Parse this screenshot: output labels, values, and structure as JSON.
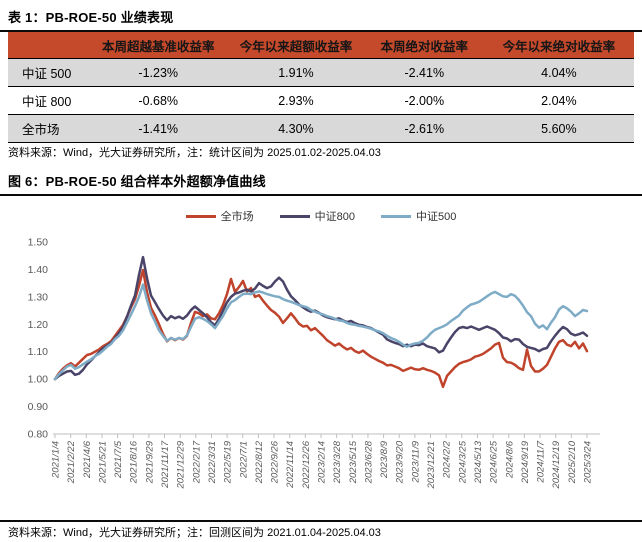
{
  "table_section": {
    "title": "表 1：PB-ROE-50 业绩表现",
    "columns": [
      "",
      "本周超越基准收益率",
      "今年以来超额收益率",
      "本周绝对收益率",
      "今年以来绝对收益率"
    ],
    "col_widths": [
      "13%",
      "22%",
      "22%",
      "19%",
      "24%"
    ],
    "rows": [
      {
        "label": "中证 500",
        "values": [
          "-1.23%",
          "1.91%",
          "-2.41%",
          "4.04%"
        ]
      },
      {
        "label": "中证 800",
        "values": [
          "-0.68%",
          "2.93%",
          "-2.00%",
          "2.04%"
        ]
      },
      {
        "label": "全市场",
        "values": [
          "-1.41%",
          "4.30%",
          "-2.61%",
          "5.60%"
        ]
      }
    ],
    "header_bg": "#C5492B",
    "stripe_bg": "#D9D9D9",
    "source": "资料来源：Wind，光大证券研究所，注：统计区间为 2025.01.02-2025.04.03"
  },
  "chart_section": {
    "title": "图 6：PB-ROE-50 组合样本外超额净值曲线",
    "source": "资料来源：Wind，光大证券研究所；注：回测区间为 2021.01.04-2025.04.03"
  },
  "chart_data": {
    "type": "line",
    "title": "PB-ROE-50 组合样本外超额净值曲线",
    "xlabel": "",
    "ylabel": "",
    "ylim": [
      0.8,
      1.5
    ],
    "y_tick_labels": [
      "1.50",
      "1.40",
      "1.30",
      "1.20",
      "1.10",
      "1.00",
      "0.90",
      "0.80"
    ],
    "x_tick_labels": [
      "2021/1/4",
      "2021/2/22",
      "2021/4/6",
      "2021/5/21",
      "2021/7/5",
      "2021/8/16",
      "2021/9/29",
      "2021/11/17",
      "2021/12/29",
      "2022/2/17",
      "2022/3/31",
      "2022/5/19",
      "2022/7/1",
      "2022/8/12",
      "2022/9/26",
      "2022/11/14",
      "2022/12/26",
      "2023/2/14",
      "2023/3/28",
      "2023/5/15",
      "2023/6/28",
      "2023/8/9",
      "2023/9/20",
      "2023/11/9",
      "2023/12/21",
      "2024/2/2",
      "2024/3/25",
      "2024/5/13",
      "2024/6/25",
      "2024/8/6",
      "2024/9/19",
      "2024/11/7",
      "2024/12/19",
      "2025/2/10",
      "2025/3/24"
    ],
    "grid": false,
    "legend_position": "top",
    "axis_color": "#BFBFBF",
    "tick_text_color": "#595959",
    "series": [
      {
        "name": "全市场",
        "color": "#C0432B",
        "values": [
          1.0,
          1.022,
          1.038,
          1.05,
          1.058,
          1.046,
          1.06,
          1.074,
          1.088,
          1.092,
          1.1,
          1.108,
          1.12,
          1.128,
          1.138,
          1.158,
          1.178,
          1.198,
          1.228,
          1.262,
          1.292,
          1.34,
          1.398,
          1.318,
          1.26,
          1.232,
          1.2,
          1.165,
          1.138,
          1.15,
          1.142,
          1.15,
          1.144,
          1.158,
          1.205,
          1.245,
          1.24,
          1.23,
          1.236,
          1.222,
          1.218,
          1.24,
          1.27,
          1.31,
          1.365,
          1.318,
          1.336,
          1.358,
          1.32,
          1.332,
          1.3,
          1.306,
          1.286,
          1.268,
          1.252,
          1.242,
          1.228,
          1.205,
          1.222,
          1.24,
          1.222,
          1.202,
          1.192,
          1.194,
          1.178,
          1.186,
          1.172,
          1.158,
          1.142,
          1.132,
          1.122,
          1.13,
          1.118,
          1.108,
          1.114,
          1.102,
          1.096,
          1.104,
          1.092,
          1.082,
          1.074,
          1.066,
          1.06,
          1.05,
          1.052,
          1.046,
          1.04,
          1.03,
          1.036,
          1.042,
          1.036,
          1.034,
          1.04,
          1.034,
          1.03,
          1.024,
          1.014,
          0.972,
          1.012,
          1.028,
          1.044,
          1.056,
          1.062,
          1.066,
          1.072,
          1.082,
          1.086,
          1.092,
          1.102,
          1.112,
          1.126,
          1.132,
          1.078,
          1.062,
          1.06,
          1.052,
          1.04,
          1.034,
          1.108,
          1.048,
          1.028,
          1.028,
          1.038,
          1.052,
          1.082,
          1.112,
          1.136,
          1.142,
          1.126,
          1.12,
          1.136,
          1.112,
          1.13,
          1.102
        ]
      },
      {
        "name": "中证800",
        "color": "#4A4468",
        "values": [
          1.0,
          1.012,
          1.02,
          1.028,
          1.03,
          1.016,
          1.02,
          1.034,
          1.054,
          1.068,
          1.084,
          1.098,
          1.112,
          1.122,
          1.132,
          1.15,
          1.168,
          1.19,
          1.228,
          1.268,
          1.305,
          1.38,
          1.445,
          1.368,
          1.305,
          1.28,
          1.255,
          1.232,
          1.215,
          1.23,
          1.222,
          1.228,
          1.22,
          1.232,
          1.252,
          1.265,
          1.252,
          1.24,
          1.226,
          1.208,
          1.196,
          1.22,
          1.25,
          1.28,
          1.3,
          1.312,
          1.316,
          1.322,
          1.326,
          1.32,
          1.33,
          1.35,
          1.34,
          1.332,
          1.338,
          1.356,
          1.37,
          1.356,
          1.326,
          1.302,
          1.288,
          1.272,
          1.262,
          1.252,
          1.246,
          1.25,
          1.242,
          1.232,
          1.226,
          1.222,
          1.218,
          1.222,
          1.214,
          1.208,
          1.212,
          1.204,
          1.198,
          1.196,
          1.19,
          1.186,
          1.178,
          1.17,
          1.162,
          1.145,
          1.138,
          1.132,
          1.128,
          1.12,
          1.126,
          1.12,
          1.126,
          1.124,
          1.13,
          1.12,
          1.116,
          1.112,
          1.098,
          1.104,
          1.13,
          1.152,
          1.172,
          1.186,
          1.19,
          1.186,
          1.192,
          1.186,
          1.18,
          1.186,
          1.192,
          1.186,
          1.18,
          1.168,
          1.152,
          1.148,
          1.138,
          1.146,
          1.144,
          1.128,
          1.118,
          1.114,
          1.11,
          1.102,
          1.11,
          1.114,
          1.138,
          1.158,
          1.176,
          1.19,
          1.182,
          1.166,
          1.16,
          1.164,
          1.17,
          1.158
        ]
      },
      {
        "name": "中证500",
        "color": "#7EABC6",
        "values": [
          1.0,
          1.018,
          1.032,
          1.046,
          1.052,
          1.038,
          1.044,
          1.054,
          1.064,
          1.072,
          1.084,
          1.092,
          1.104,
          1.118,
          1.128,
          1.146,
          1.158,
          1.178,
          1.206,
          1.236,
          1.266,
          1.3,
          1.345,
          1.288,
          1.24,
          1.21,
          1.178,
          1.158,
          1.14,
          1.15,
          1.144,
          1.15,
          1.146,
          1.16,
          1.19,
          1.22,
          1.226,
          1.22,
          1.212,
          1.2,
          1.186,
          1.208,
          1.23,
          1.258,
          1.28,
          1.288,
          1.3,
          1.31,
          1.312,
          1.31,
          1.316,
          1.32,
          1.316,
          1.31,
          1.306,
          1.302,
          1.3,
          1.292,
          1.286,
          1.282,
          1.276,
          1.27,
          1.266,
          1.262,
          1.252,
          1.246,
          1.24,
          1.236,
          1.23,
          1.226,
          1.22,
          1.214,
          1.212,
          1.205,
          1.2,
          1.198,
          1.194,
          1.192,
          1.188,
          1.184,
          1.178,
          1.174,
          1.168,
          1.158,
          1.15,
          1.144,
          1.136,
          1.126,
          1.118,
          1.126,
          1.13,
          1.132,
          1.14,
          1.152,
          1.168,
          1.18,
          1.186,
          1.192,
          1.2,
          1.212,
          1.222,
          1.232,
          1.25,
          1.262,
          1.272,
          1.276,
          1.282,
          1.292,
          1.302,
          1.312,
          1.318,
          1.31,
          1.302,
          1.3,
          1.31,
          1.304,
          1.288,
          1.268,
          1.244,
          1.23,
          1.202,
          1.188,
          1.196,
          1.182,
          1.206,
          1.226,
          1.254,
          1.266,
          1.258,
          1.246,
          1.23,
          1.24,
          1.252,
          1.248
        ]
      }
    ]
  }
}
